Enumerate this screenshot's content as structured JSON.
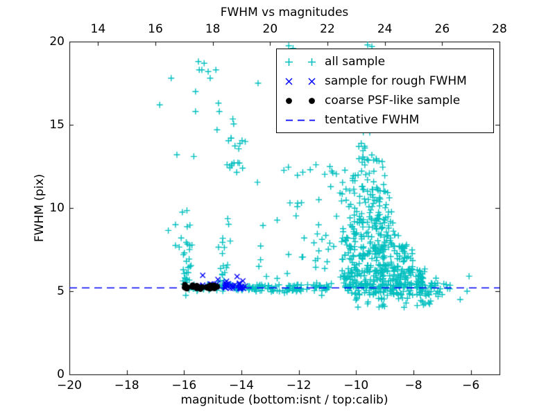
{
  "figure": {
    "background": "#ffffff"
  },
  "chart_data": {
    "type": "scatter",
    "title": "FWHM vs magnitudes",
    "xlabel": "magnitude (bottom:isnt / top:calib)",
    "ylabel": "FWHM (pix)",
    "xlim": [
      -20,
      -5
    ],
    "ylim": [
      0,
      20
    ],
    "top_xlim": [
      13,
      28
    ],
    "grid": false,
    "legend_position": "upper right",
    "x_ticks": {
      "values": [
        -20,
        -18,
        -16,
        -14,
        -12,
        -10,
        -8,
        -6
      ],
      "labels": [
        "−20",
        "−18",
        "−16",
        "−14",
        "−12",
        "−10",
        "−8",
        "−6"
      ]
    },
    "top_ticks": {
      "values": [
        14,
        16,
        18,
        20,
        22,
        24,
        26,
        28
      ],
      "labels": [
        "14",
        "16",
        "18",
        "20",
        "22",
        "24",
        "26",
        "28"
      ]
    },
    "y_ticks": {
      "values": [
        0,
        5,
        10,
        15,
        20
      ],
      "labels": [
        "0",
        "5",
        "10",
        "15",
        "20"
      ]
    },
    "tentative_fwhm": 5.2,
    "line": {
      "name": "tentative FWHM",
      "style": "dashed",
      "color": "#0000ff",
      "y": 5.2
    },
    "series": [
      {
        "name": "all sample",
        "marker": "plus",
        "color": "#00bfbf",
        "clusters": [
          {
            "n": 55,
            "x": [
              -15.85,
              -13.55
            ],
            "y": [
              5.0,
              5.42
            ]
          },
          {
            "n": 75,
            "x": [
              -13.55,
              -10.9
            ],
            "y": [
              4.95,
              5.4
            ]
          },
          {
            "n": 10,
            "x": [
              -7.6,
              -6.6
            ],
            "y": [
              4.85,
              5.5
            ]
          },
          {
            "n": 16,
            "x": [
              -16.12,
              -15.72
            ],
            "y": [
              5.4,
              7.1
            ]
          },
          {
            "n": 9,
            "x": [
              -16.1,
              -15.7
            ],
            "y": [
              7.1,
              9.1
            ]
          },
          {
            "n": 10,
            "x": [
              -14.75,
              -14.35
            ],
            "y": [
              5.5,
              7.5
            ]
          },
          {
            "n": 7,
            "x": [
              -14.8,
              -14.3
            ],
            "y": [
              7.5,
              10.2
            ]
          },
          {
            "n": 14,
            "x": [
              -14.45,
              -13.85
            ],
            "y": [
              12.1,
              14.35
            ]
          },
          {
            "n": 22,
            "x": [
              -13.5,
              -11.4
            ],
            "y": [
              5.5,
              12.5
            ]
          },
          {
            "n": 12,
            "x": [
              -9.95,
              -9.25
            ],
            "y": [
              12.8,
              14.6
            ]
          },
          {
            "n": 28,
            "x": [
              -10.2,
              -9.0
            ],
            "y": [
              11.0,
              13.0
            ]
          },
          {
            "n": 55,
            "x": [
              -10.35,
              -8.75
            ],
            "y": [
              9.2,
              11.2
            ]
          },
          {
            "n": 90,
            "x": [
              -10.5,
              -8.4
            ],
            "y": [
              7.6,
              9.4
            ]
          },
          {
            "n": 130,
            "x": [
              -10.5,
              -8.0
            ],
            "y": [
              6.2,
              7.8
            ]
          },
          {
            "n": 150,
            "x": [
              -10.45,
              -7.6
            ],
            "y": [
              5.35,
              6.35
            ]
          },
          {
            "n": 120,
            "x": [
              -10.4,
              -7.3
            ],
            "y": [
              4.75,
              5.45
            ]
          },
          {
            "n": 30,
            "x": [
              -10.2,
              -7.1
            ],
            "y": [
              4.0,
              4.8
            ]
          },
          {
            "n": 18,
            "x": [
              -11.5,
              -10.45
            ],
            "y": [
              5.3,
              9.5
            ]
          },
          {
            "n": 12,
            "x": [
              -11.3,
              -10.3
            ],
            "y": [
              9.5,
              13.0
            ]
          },
          {
            "n": 20,
            "x": [
              -8.0,
              -6.9
            ],
            "y": [
              4.7,
              5.9
            ]
          }
        ],
        "points": [
          [
            -16.85,
            16.2
          ],
          [
            -16.45,
            17.8
          ],
          [
            -15.5,
            18.8
          ],
          [
            -15.3,
            18.7
          ],
          [
            -15.47,
            18.3
          ],
          [
            -15.38,
            18.3
          ],
          [
            -15.16,
            18.2
          ],
          [
            -15.09,
            17.8
          ],
          [
            -14.89,
            18.3
          ],
          [
            -15.6,
            17.0
          ],
          [
            -15.6,
            15.8
          ],
          [
            -14.77,
            15.8
          ],
          [
            -14.8,
            16.3
          ],
          [
            -14.3,
            15.35
          ],
          [
            -14.27,
            15.05
          ],
          [
            -14.85,
            14.7
          ],
          [
            -14.36,
            14.2
          ],
          [
            -14.07,
            12.7
          ],
          [
            -16.25,
            13.2
          ],
          [
            -15.66,
            13.1
          ],
          [
            -14.5,
            12.6
          ],
          [
            -13.42,
            17.5
          ],
          [
            -12.35,
            19.75
          ],
          [
            -12.2,
            19.6
          ],
          [
            -9.6,
            19.8
          ],
          [
            -9.45,
            19.7
          ],
          [
            -16.06,
            9.75
          ],
          [
            -15.9,
            9.85
          ],
          [
            -16.3,
            9.0
          ],
          [
            -16.1,
            8.2
          ],
          [
            -16.3,
            7.75
          ],
          [
            -16.17,
            7.65
          ],
          [
            -16.55,
            8.65
          ],
          [
            -11.86,
            12.15
          ],
          [
            -11.6,
            12.3
          ],
          [
            -11.4,
            12.6
          ],
          [
            -11.3,
            10.5
          ],
          [
            -10.56,
            10.9
          ],
          [
            -9.75,
            14.55
          ],
          [
            -6.06,
            5.9
          ],
          [
            -6.13,
            5.0
          ],
          [
            -6.37,
            4.5
          ],
          [
            -7.0,
            4.8
          ],
          [
            -12.5,
            4.9
          ],
          [
            -11.2,
            4.75
          ],
          [
            -15.94,
            4.75
          ]
        ]
      },
      {
        "name": "sample for rough FWHM",
        "marker": "x",
        "color": "#0000ff",
        "clusters": [
          {
            "n": 12,
            "x": [
              -15.55,
              -14.7
            ],
            "y": [
              5.15,
              5.45
            ]
          },
          {
            "n": 24,
            "x": [
              -14.65,
              -13.88
            ],
            "y": [
              5.12,
              5.5
            ]
          }
        ],
        "points": [
          [
            -15.35,
            5.95
          ],
          [
            -14.82,
            5.7
          ],
          [
            -14.15,
            5.88
          ],
          [
            -14.52,
            5.6
          ],
          [
            -13.95,
            5.62
          ],
          [
            -13.88,
            5.3
          ]
        ]
      },
      {
        "name": "coarse PSF-like sample",
        "marker": "dot",
        "color": "#000000",
        "clusters": [
          {
            "n": 16,
            "x": [
              -16.0,
              -15.32
            ],
            "y": [
              5.12,
              5.4
            ]
          },
          {
            "n": 12,
            "x": [
              -15.22,
              -14.8
            ],
            "y": [
              5.15,
              5.38
            ]
          }
        ],
        "points": []
      }
    ]
  },
  "legend": {
    "items": [
      {
        "label": "all sample",
        "marker": "plus",
        "color": "#00bfbf"
      },
      {
        "label": "sample for rough FWHM",
        "marker": "x",
        "color": "#0000ff"
      },
      {
        "label": "coarse PSF-like sample",
        "marker": "dot",
        "color": "#000000"
      },
      {
        "label": "tentative FWHM",
        "marker": "dashed-line",
        "color": "#0000ff"
      }
    ]
  }
}
